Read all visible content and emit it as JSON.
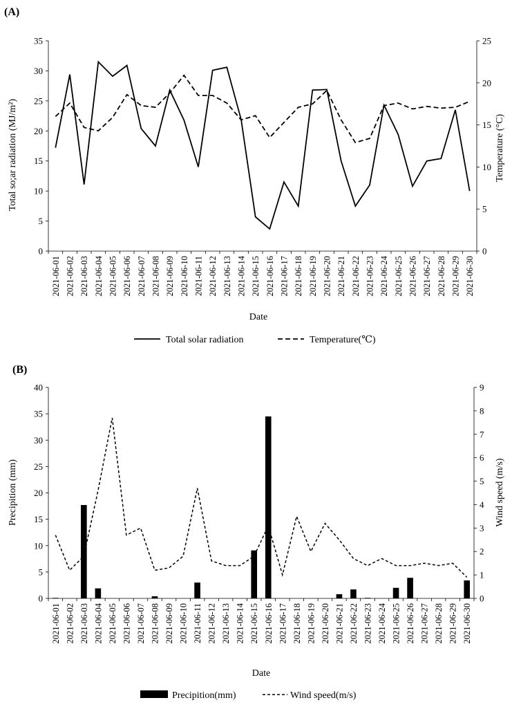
{
  "chart_data": [
    {
      "type": "line",
      "panel_label": "(A)",
      "xlabel": "Date",
      "ylabel": "Total so;ar radiation (MJ/m²)",
      "ylabel_right": "Temperature (°C)",
      "ylim": [
        0,
        35
      ],
      "yticks": [
        0,
        5,
        10,
        15,
        20,
        25,
        30,
        35
      ],
      "ylim_right": [
        0,
        25
      ],
      "yticks_right": [
        0,
        5,
        10,
        15,
        20,
        25
      ],
      "categories": [
        "2021-06-01",
        "2021-06-02",
        "2021-06-03",
        "2021-06-04",
        "2021-06-05",
        "2021-06-06",
        "2021-06-07",
        "2021-06-08",
        "2021-06-09",
        "2021-06-10",
        "2021-06-11",
        "2021-06-12",
        "2021-06-13",
        "2021-06-14",
        "2021-06-15",
        "2021-06-16",
        "2021-06-17",
        "2021-06-18",
        "2021-06-19",
        "2021-06-20",
        "2021-06-21",
        "2021-06-22",
        "2021-06-23",
        "2021-06-24",
        "2021-06-25",
        "2021-06-26",
        "2021-06-27",
        "2021-06-28",
        "2021-06-29",
        "2021-06-30"
      ],
      "series": [
        {
          "name": "Total solar radiation",
          "axis": "left",
          "style": "solid",
          "values": [
            17.2,
            29.4,
            11.1,
            31.5,
            29.1,
            30.9,
            20.4,
            17.5,
            26.8,
            21.8,
            14.0,
            30.1,
            30.6,
            21.9,
            5.7,
            3.7,
            11.5,
            7.5,
            26.8,
            26.9,
            15.0,
            7.5,
            11.0,
            24.3,
            19.4,
            10.8,
            15.0,
            15.4,
            23.5,
            10.0
          ]
        },
        {
          "name": "Temperature(℃)",
          "axis": "right",
          "style": "dashed",
          "values": [
            16.0,
            17.6,
            14.7,
            14.3,
            15.9,
            18.6,
            17.3,
            17.1,
            18.8,
            20.9,
            18.5,
            18.5,
            17.6,
            15.6,
            16.1,
            13.5,
            15.3,
            17.1,
            17.5,
            19.1,
            15.6,
            12.9,
            13.4,
            17.3,
            17.6,
            16.9,
            17.2,
            17.0,
            17.1,
            17.8
          ]
        }
      ],
      "legend": [
        "Total solar radiation",
        "Temperature(℃)"
      ]
    },
    {
      "type": "bar",
      "panel_label": "(B)",
      "xlabel": "Date",
      "ylabel": "Precipition (mm)",
      "ylabel_right": "Wind speed (m/s)",
      "ylim": [
        0,
        40
      ],
      "yticks": [
        0,
        5,
        10,
        15,
        20,
        25,
        30,
        35,
        40
      ],
      "ylim_right": [
        0,
        9
      ],
      "yticks_right": [
        0,
        1,
        2,
        3,
        4,
        5,
        6,
        7,
        8,
        9
      ],
      "categories": [
        "2021-06-01",
        "2021-06-02",
        "2021-06-03",
        "2021-06-04",
        "2021-06-05",
        "2021-06-06",
        "2021-06-07",
        "2021-06-08",
        "2021-06-09",
        "2021-06-10",
        "2021-06-11",
        "2021-06-12",
        "2021-06-13",
        "2021-06-14",
        "2021-06-15",
        "2021-06-16",
        "2021-06-17",
        "2021-06-18",
        "2021-06-19",
        "2021-06-20",
        "2021-06-21",
        "2021-06-22",
        "2021-06-23",
        "2021-06-24",
        "2021-06-25",
        "2021-06-26",
        "2021-06-27",
        "2021-06-28",
        "2021-06-29",
        "2021-06-30"
      ],
      "series": [
        {
          "name": "Precipition(mm)",
          "axis": "left",
          "style": "bar",
          "values": [
            0.1,
            0,
            17.7,
            1.9,
            0,
            0,
            0,
            0.4,
            0,
            0,
            3.0,
            0,
            0,
            0,
            9.1,
            34.5,
            0,
            0,
            0,
            0,
            0.8,
            1.7,
            0.1,
            0,
            2.0,
            3.9,
            0,
            0,
            0,
            3.4
          ]
        },
        {
          "name": "Wind speed(m/s)",
          "axis": "right",
          "style": "dashed",
          "values": [
            2.7,
            1.2,
            1.8,
            4.6,
            7.7,
            2.7,
            3.0,
            1.2,
            1.3,
            1.8,
            4.7,
            1.6,
            1.4,
            1.4,
            1.8,
            3.1,
            1.0,
            3.5,
            2.0,
            3.2,
            2.5,
            1.7,
            1.4,
            1.7,
            1.4,
            1.4,
            1.5,
            1.4,
            1.5,
            0.9
          ]
        }
      ],
      "legend": [
        "Precipition(mm)",
        "Wind speed(m/s)"
      ]
    }
  ]
}
